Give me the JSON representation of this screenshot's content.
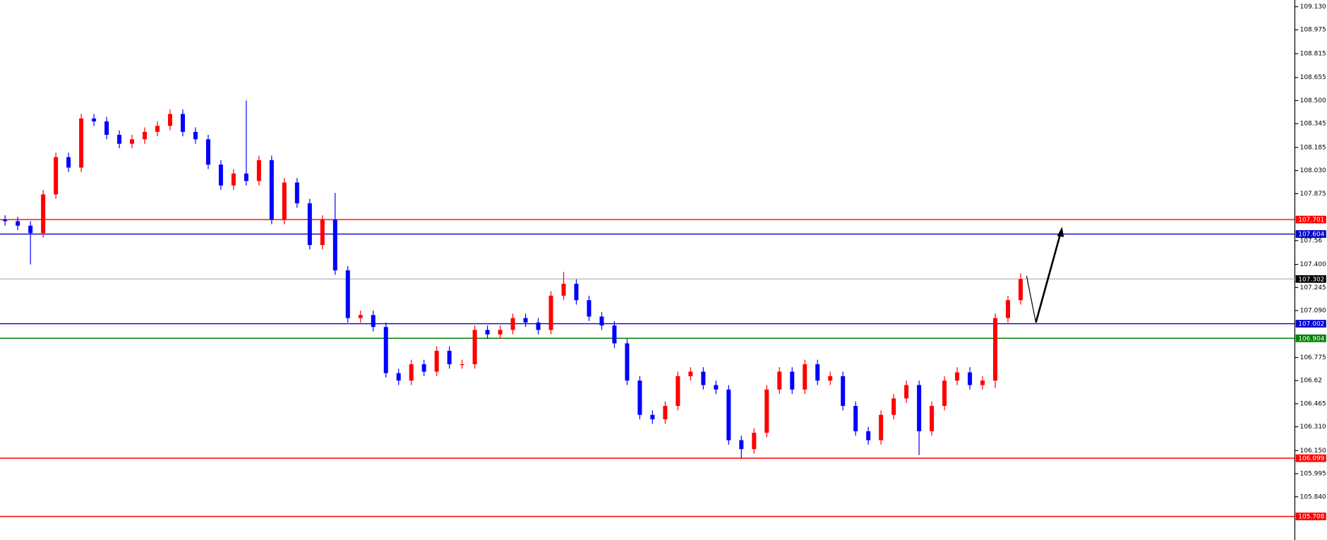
{
  "chart_data": {
    "type": "candlestick",
    "ylim": [
      105.55,
      109.175
    ],
    "yticks": [
      {
        "value": 109.13,
        "label": "109.130"
      },
      108.975,
      108.815,
      108.655,
      {
        "value": 108.5,
        "label": "108.500"
      },
      108.345,
      108.185,
      {
        "value": 108.03,
        "label": "108.030"
      },
      107.875,
      107.56,
      {
        "value": 107.4,
        "label": "107.400"
      },
      107.245,
      {
        "value": 107.09,
        "label": "107.090"
      },
      106.775,
      106.62,
      106.465,
      {
        "value": 106.31,
        "label": "106.310"
      },
      {
        "value": 106.15,
        "label": "106.150"
      },
      105.995,
      {
        "value": 105.84,
        "label": "105.840"
      }
    ],
    "series": {
      "up_color": "#ff0000",
      "down_color": "#0000ff",
      "open": [
        107.7,
        107.69,
        107.66,
        107.61,
        107.87,
        108.12,
        108.05,
        108.38,
        108.36,
        108.27,
        108.21,
        108.24,
        108.29,
        108.33,
        108.41,
        108.29,
        108.24,
        108.07,
        107.93,
        108.01,
        107.96,
        108.1,
        107.7,
        107.95,
        107.81,
        107.53,
        107.7,
        107.36,
        107.04,
        107.06,
        106.98,
        106.67,
        106.62,
        106.73,
        106.68,
        106.82,
        106.73,
        106.73,
        106.96,
        106.93,
        106.96,
        107.04,
        107.01,
        106.96,
        107.19,
        107.27,
        107.16,
        107.05,
        106.99,
        106.87,
        106.62,
        106.39,
        106.36,
        106.45,
        106.65,
        106.68,
        106.59,
        106.56,
        106.22,
        106.16,
        106.27,
        106.56,
        106.68,
        106.56,
        106.73,
        106.62,
        106.65,
        106.45,
        106.28,
        106.22,
        106.39,
        106.5,
        106.59,
        106.28,
        106.45,
        106.62,
        106.675,
        106.59,
        106.62,
        107.04,
        107.16
      ],
      "high": [
        107.73,
        107.72,
        107.69,
        107.9,
        108.15,
        108.15,
        108.41,
        108.41,
        108.39,
        108.3,
        108.27,
        108.32,
        108.36,
        108.44,
        108.44,
        108.32,
        108.27,
        108.1,
        108.04,
        108.5,
        108.13,
        108.13,
        107.98,
        107.98,
        107.84,
        107.73,
        107.88,
        107.39,
        107.09,
        107.09,
        107.01,
        106.7,
        106.76,
        106.76,
        106.85,
        106.85,
        106.76,
        106.99,
        106.99,
        106.99,
        107.07,
        107.07,
        107.04,
        107.22,
        107.35,
        107.3,
        107.19,
        107.08,
        107.02,
        106.9,
        106.65,
        106.42,
        106.48,
        106.68,
        106.71,
        106.71,
        106.62,
        106.59,
        106.25,
        106.3,
        106.59,
        106.71,
        106.71,
        106.76,
        106.76,
        106.68,
        106.68,
        106.48,
        106.31,
        106.42,
        106.53,
        106.62,
        106.62,
        106.48,
        106.65,
        106.71,
        106.71,
        106.65,
        107.07,
        107.19,
        107.34
      ],
      "low": [
        107.66,
        107.63,
        107.4,
        107.58,
        107.84,
        108.02,
        108.02,
        108.33,
        108.24,
        108.18,
        108.18,
        108.21,
        108.26,
        108.3,
        108.26,
        108.21,
        108.04,
        107.9,
        107.9,
        107.93,
        107.93,
        107.67,
        107.67,
        107.78,
        107.5,
        107.5,
        107.33,
        107.01,
        107.01,
        106.95,
        106.64,
        106.59,
        106.59,
        106.65,
        106.65,
        106.7,
        106.7,
        106.7,
        106.9,
        106.9,
        106.93,
        106.98,
        106.93,
        106.93,
        107.16,
        107.13,
        107.02,
        106.96,
        106.84,
        106.59,
        106.36,
        106.33,
        106.33,
        106.42,
        106.62,
        106.56,
        106.53,
        106.19,
        106.1,
        106.13,
        106.24,
        106.53,
        106.53,
        106.53,
        106.59,
        106.59,
        106.42,
        106.25,
        106.19,
        106.19,
        106.36,
        106.47,
        106.12,
        106.25,
        106.42,
        106.59,
        106.56,
        106.56,
        106.57,
        107.01,
        107.13
      ],
      "close": [
        107.69,
        107.66,
        107.61,
        107.87,
        108.12,
        108.05,
        108.38,
        108.36,
        108.27,
        108.21,
        108.24,
        108.29,
        108.33,
        108.41,
        108.29,
        108.24,
        108.07,
        107.93,
        108.01,
        107.96,
        108.1,
        107.7,
        107.95,
        107.81,
        107.53,
        107.7,
        107.36,
        107.04,
        107.06,
        106.98,
        106.67,
        106.62,
        106.73,
        106.68,
        106.82,
        106.73,
        106.73,
        106.96,
        106.93,
        106.96,
        107.04,
        107.01,
        106.96,
        107.19,
        107.27,
        107.16,
        107.05,
        106.99,
        106.87,
        106.62,
        106.39,
        106.36,
        106.45,
        106.65,
        106.68,
        106.59,
        106.56,
        106.22,
        106.16,
        106.27,
        106.56,
        106.68,
        106.56,
        106.73,
        106.62,
        106.65,
        106.45,
        106.28,
        106.22,
        106.39,
        106.5,
        106.59,
        106.28,
        106.45,
        106.62,
        106.675,
        106.59,
        106.62,
        107.04,
        107.16,
        107.302
      ]
    },
    "levels": [
      {
        "value": 107.701,
        "color": "#ff0000"
      },
      {
        "value": 107.604,
        "color": "#0000cc"
      },
      {
        "value": 107.302,
        "color": "#c0c0c0",
        "label_color": "#000000"
      },
      {
        "value": 107.002,
        "color": "#0000cc"
      },
      {
        "value": 106.904,
        "color": "#008000"
      },
      {
        "value": 106.099,
        "color": "#ff0000"
      },
      {
        "value": 105.708,
        "color": "#ff0000"
      }
    ]
  }
}
